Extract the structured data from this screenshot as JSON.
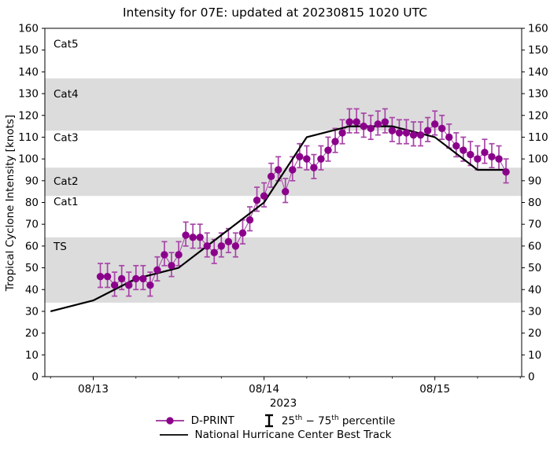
{
  "title": "Intensity for 07E: updated at 20230815 1020 UTC",
  "axes": {
    "ylabel": "Tropical Cyclone Intensity [knots]",
    "xlabel": "2023",
    "y_ticks": [
      0,
      10,
      20,
      30,
      40,
      50,
      60,
      70,
      80,
      90,
      100,
      110,
      120,
      130,
      140,
      150,
      160
    ],
    "x_ticks": [
      {
        "t": 0,
        "label": "08/13"
      },
      {
        "t": 24,
        "label": "08/14"
      },
      {
        "t": 48,
        "label": "08/15"
      }
    ],
    "x_minor_interval_hours": 6
  },
  "bands": [
    {
      "name": "TS",
      "lo": 34,
      "hi": 64,
      "shaded": true,
      "label_kt": 60
    },
    {
      "name": "Cat1",
      "lo": 64,
      "hi": 83,
      "shaded": false,
      "label_kt": 80.5
    },
    {
      "name": "Cat2",
      "lo": 83,
      "hi": 96,
      "shaded": true,
      "label_kt": 90
    },
    {
      "name": "Cat3",
      "lo": 96,
      "hi": 113,
      "shaded": false,
      "label_kt": 110
    },
    {
      "name": "Cat4",
      "lo": 113,
      "hi": 137,
      "shaded": true,
      "label_kt": 130
    },
    {
      "name": "Cat5",
      "lo": 137,
      "hi": 160,
      "shaded": false,
      "label_kt": 153
    }
  ],
  "colors": {
    "band_gray": "#DCDCDC",
    "dprint_marker": "#8B008B",
    "dprint_bar": "#A845A8",
    "best_track": "#000000",
    "background": "#FFFFFF",
    "axis": "#000000"
  },
  "chart_data": {
    "type": "line",
    "x_unit": "hours since 2023-08-13 00:00 UTC",
    "xlim": [
      -6.8,
      60.2
    ],
    "ylim": [
      0,
      160
    ],
    "grid": false,
    "legend_position": "below",
    "series": [
      {
        "name": "D-PRINT",
        "style": "scatter_errorbar",
        "err_lo": 5,
        "err_hi": 6,
        "x": [
          1,
          2,
          3,
          4,
          5,
          6,
          7,
          8,
          9,
          10,
          11,
          12,
          13,
          14,
          15,
          16,
          17,
          18,
          19,
          20,
          21,
          22,
          23,
          24,
          25,
          26,
          27,
          28,
          29,
          30,
          31,
          32,
          33,
          34,
          35,
          36,
          37,
          38,
          39,
          40,
          41,
          42,
          43,
          44,
          45,
          46,
          47,
          48,
          49,
          50,
          51,
          52,
          53,
          54,
          55,
          56,
          57,
          58
        ],
        "values": [
          46,
          46,
          42,
          45,
          42,
          45,
          45,
          42,
          49,
          56,
          51,
          56,
          65,
          64,
          64,
          60,
          57,
          60,
          62,
          60,
          66,
          72,
          81,
          83,
          92,
          95,
          85,
          95,
          101,
          100,
          96,
          100,
          104,
          108,
          112,
          117,
          117,
          115,
          114,
          116,
          117,
          113,
          112,
          112,
          111,
          111,
          113,
          116,
          114,
          110,
          106,
          104,
          102,
          100,
          103,
          101,
          100,
          94
        ]
      },
      {
        "name": "National Hurricane Center Best Track",
        "style": "line",
        "x": [
          -6,
          0,
          6,
          12,
          18,
          24,
          30,
          36,
          42,
          48,
          54,
          58
        ],
        "values": [
          30,
          35,
          45,
          50,
          65,
          80,
          110,
          115,
          115,
          110,
          95,
          95
        ]
      }
    ]
  },
  "legend": {
    "dprint_label": "D-PRINT",
    "percentile": {
      "p1": "25",
      "sup1": "th",
      "mid": " − ",
      "p2": "75",
      "sup2": "th",
      "rest": " percentile"
    },
    "best_track_label": "National Hurricane Center Best Track"
  }
}
